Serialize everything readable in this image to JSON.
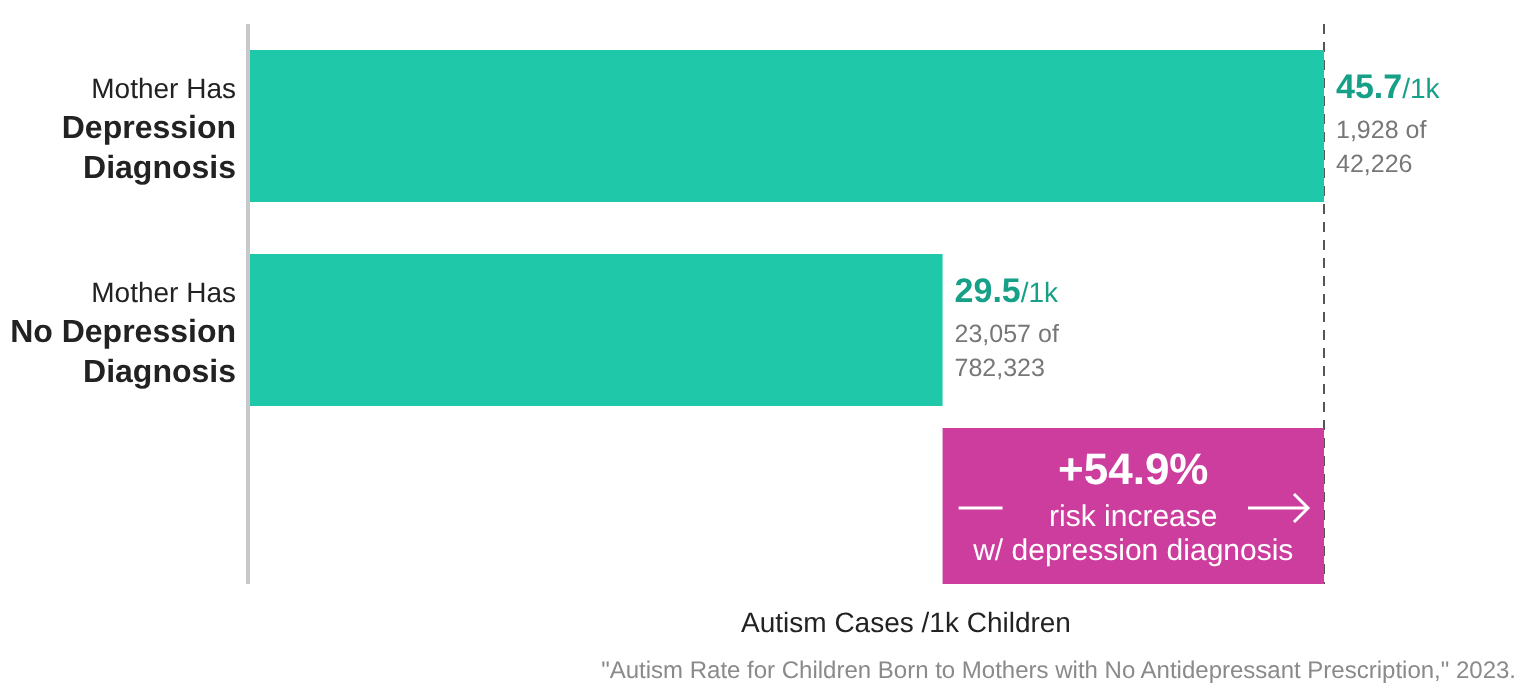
{
  "chart_data": {
    "type": "bar",
    "orientation": "horizontal",
    "categories": [
      "Mother Has\nDepression\nDiagnosis",
      "Mother Has\nNo Depression\nDiagnosis"
    ],
    "values": [
      45.7,
      29.5
    ],
    "value_labels": [
      "45.7/1k",
      "29.5/1k"
    ],
    "color": "#1ec8a8",
    "tick_labels": "y",
    "xlabel": "Autism Cases /1k Children",
    "ref_lines": [
      {
        "axis": "x",
        "value": 45.7,
        "line_style": "dashed",
        "color": "#555555"
      }
    ],
    "bands": [
      {
        "axis": "x",
        "from": 29.5,
        "to": 45.7,
        "label": "+54.9%\nrisk increase\nw/ depression diagnosis",
        "color": "#cc3d9e"
      }
    ],
    "annotations": [
      {
        "text": "1,928 of\n42,226",
        "x": 45.7,
        "y": "Mother Has\nDepression\nDiagnosis"
      },
      {
        "text": "23,057 of\n782,323",
        "x": 29.5,
        "y": "Mother Has\nNo Depression\nDiagnosis"
      },
      "\"Autism Rate for Children Born to Mothers with No Antidepressant Prescription,\" 2023."
    ]
  }
}
